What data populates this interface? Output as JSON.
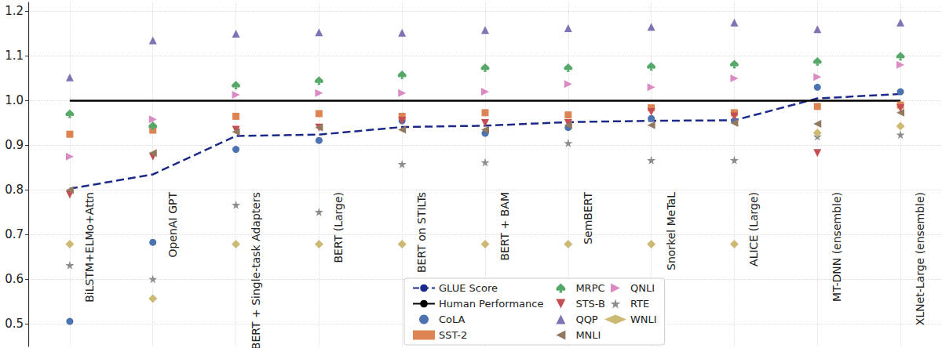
{
  "chart_data": {
    "type": "scatter",
    "categories": [
      "BiLSTM+ELMo+Attn",
      "OpenAI GPT",
      "BERT + Single-task Adapters",
      "BERT (Large)",
      "BERT on STILTs",
      "BERT + BAM",
      "SemBERT",
      "Snorkel MeTaL",
      "ALICE (Large)",
      "MT-DNN (ensemble)",
      "XLNet-Large (ensemble)"
    ],
    "ylim": [
      0.45,
      1.22
    ],
    "yticks": [
      0.5,
      0.6,
      0.7,
      0.8,
      0.9,
      {
        "value": 1,
        "label": "1.0"
      },
      1.1,
      1.2
    ],
    "grid": true,
    "legend": "bottom",
    "series": [
      {
        "name": "GLUE Score",
        "type": "line",
        "line_style": "dashed",
        "color": "#1b2a8a",
        "values": [
          0.803,
          0.835,
          0.921,
          0.924,
          0.941,
          0.944,
          0.952,
          0.955,
          0.956,
          1.005,
          1.015
        ]
      },
      {
        "name": "Human Performance",
        "type": "line",
        "line_style": "solid",
        "color": "#000000",
        "values": [
          1,
          1,
          1,
          1,
          1,
          1,
          1,
          1,
          1,
          1,
          1
        ]
      },
      {
        "name": "CoLA",
        "type": "scatter",
        "marker": "circle",
        "color": "#4c72b0",
        "values": [
          0.506,
          0.683,
          0.891,
          0.911,
          0.955,
          0.927,
          0.94,
          0.96,
          0.955,
          1.03,
          1.02
        ]
      },
      {
        "name": "SST-2",
        "type": "scatter",
        "marker": "square",
        "color": "#dd8452",
        "values": [
          0.925,
          0.934,
          0.965,
          0.971,
          0.965,
          0.973,
          0.968,
          0.984,
          0.973,
          0.987,
          0.99
        ]
      },
      {
        "name": "MRPC",
        "type": "scatter",
        "marker": "spade",
        "color": "#55a868",
        "values": [
          0.971,
          0.944,
          1.035,
          1.045,
          1.058,
          1.074,
          1.074,
          1.077,
          1.082,
          1.088,
          1.1
        ]
      },
      {
        "name": "STS-B",
        "type": "scatter",
        "marker": "triangle_down",
        "color": "#c44e52",
        "values": [
          0.79,
          0.875,
          0.935,
          0.94,
          0.955,
          0.95,
          0.95,
          0.975,
          0.965,
          0.883,
          0.983
        ]
      },
      {
        "name": "QQP",
        "type": "scatter",
        "marker": "triangle_up",
        "color": "#8172b3",
        "values": [
          1.052,
          1.135,
          1.15,
          1.153,
          1.152,
          1.158,
          1.162,
          1.165,
          1.175,
          1.16,
          1.175
        ]
      },
      {
        "name": "MNLI",
        "type": "scatter",
        "marker": "triangle_left",
        "color": "#937860",
        "values": [
          0.8,
          0.883,
          0.93,
          0.94,
          0.935,
          0.935,
          0.945,
          0.945,
          0.95,
          0.948,
          0.973
        ]
      },
      {
        "name": "QNLI",
        "type": "scatter",
        "marker": "triangle_right",
        "color": "#da8bc3",
        "values": [
          0.875,
          0.958,
          1.013,
          1.017,
          1.017,
          1.02,
          1.037,
          1.03,
          1.05,
          1.053,
          1.08
        ]
      },
      {
        "name": "RTE",
        "type": "scatter",
        "marker": "star",
        "color": "#8c8c8c",
        "values": [
          0.632,
          0.601,
          0.767,
          0.751,
          0.858,
          0.862,
          0.905,
          0.867,
          0.867,
          0.92,
          0.924
        ]
      },
      {
        "name": "WNLI",
        "type": "scatter",
        "marker": "diamond",
        "color": "#ccb974",
        "values": [
          0.679,
          0.557,
          0.679,
          0.679,
          0.679,
          0.679,
          0.679,
          0.679,
          0.679,
          0.928,
          0.943
        ]
      }
    ]
  }
}
